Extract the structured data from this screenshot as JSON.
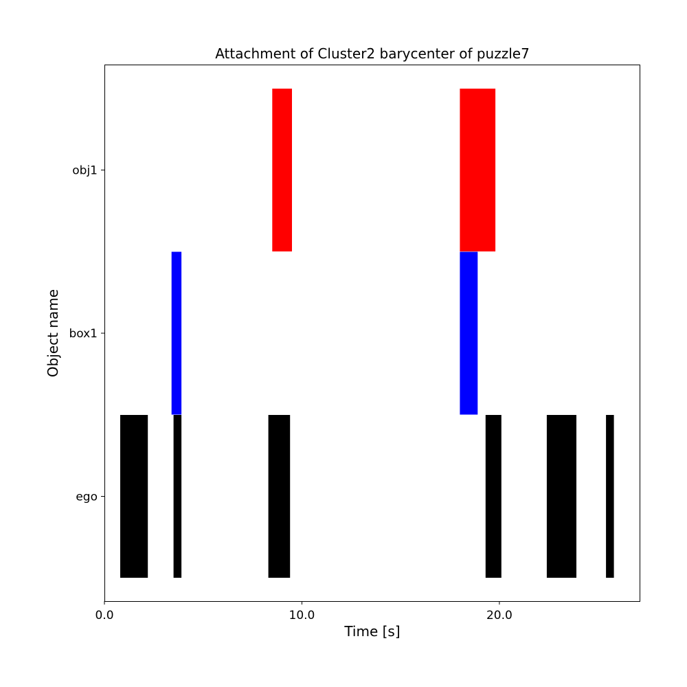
{
  "chart_data": {
    "type": "bar",
    "orientation": "horizontal-timeline",
    "title": "Attachment of Cluster2 barycenter of puzzle7",
    "xlabel": "Time [s]",
    "ylabel": "Object name",
    "xlim": [
      0,
      27.1
    ],
    "x_ticks": [
      "0.0",
      "10.0",
      "20.0"
    ],
    "x_tick_values": [
      0,
      10,
      20
    ],
    "categories": [
      "ego",
      "box1",
      "obj1"
    ],
    "grid": false,
    "legend": "none",
    "series": [
      {
        "category": "ego",
        "color": "#000000",
        "intervals": [
          [
            0.8,
            2.2
          ],
          [
            3.5,
            3.9
          ],
          [
            8.3,
            9.4
          ],
          [
            19.3,
            20.1
          ],
          [
            22.4,
            23.9
          ],
          [
            25.4,
            25.8
          ]
        ]
      },
      {
        "category": "box1",
        "color": "#0000ff",
        "intervals": [
          [
            3.4,
            3.9
          ],
          [
            18.0,
            18.9
          ]
        ]
      },
      {
        "category": "obj1",
        "color": "#ff0000",
        "intervals": [
          [
            8.5,
            9.5
          ],
          [
            18.0,
            19.8
          ]
        ]
      }
    ]
  }
}
